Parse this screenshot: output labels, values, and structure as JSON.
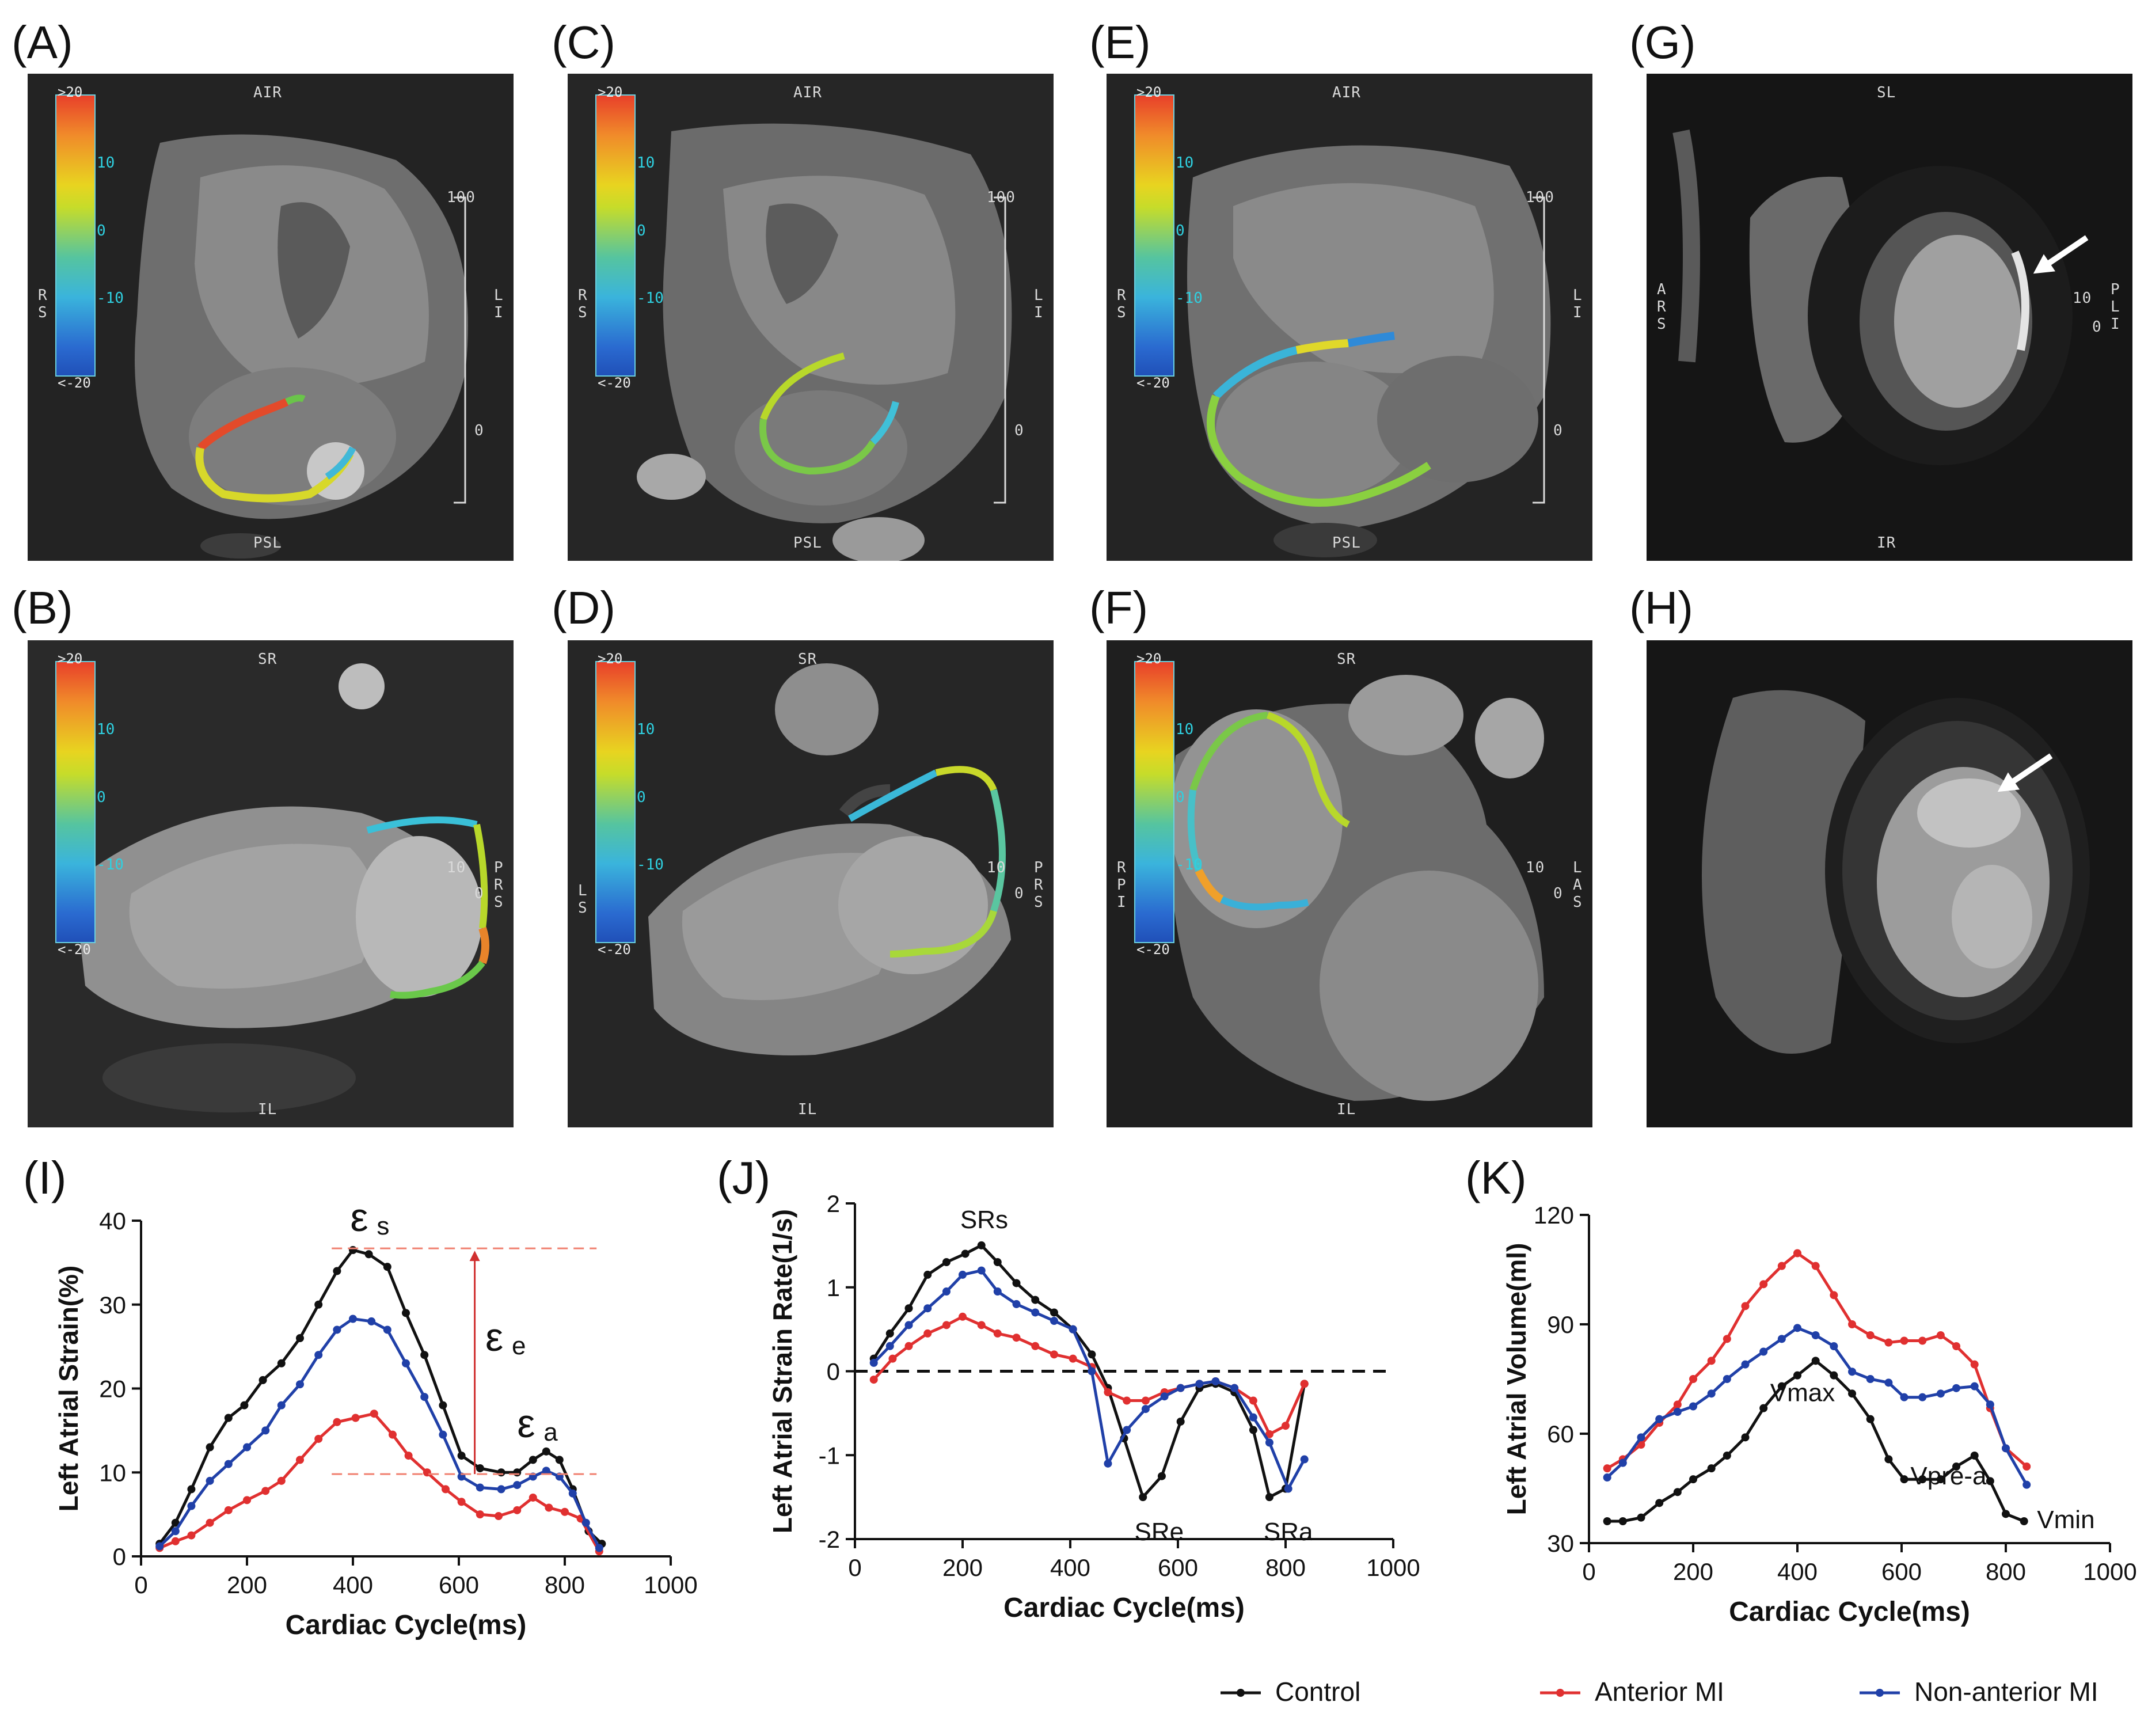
{
  "panel_labels": [
    "(A)",
    "(B)",
    "(C)",
    "(D)",
    "(E)",
    "(F)",
    "(G)",
    "(H)",
    "(I)",
    "(J)",
    "(K)"
  ],
  "mri": {
    "colorbar": {
      "top": ">20",
      "t10": "10",
      "t0": "0",
      "tm10": "-10",
      "bottom": "<-20"
    },
    "A": {
      "top": "AIR",
      "bottom": "PSL",
      "left": "R\nS",
      "right": "L\nI",
      "scale_100": "100",
      "scale_0": "0"
    },
    "C": {
      "top": "AIR",
      "bottom": "PSL",
      "left": "R\nS",
      "right": "L\nI",
      "scale_100": "100",
      "scale_0": "0"
    },
    "E": {
      "top": "AIR",
      "bottom": "PSL",
      "left": "R\nS",
      "right": "L\nI",
      "scale_100": "100",
      "scale_0": "0"
    },
    "G": {
      "top": "SL",
      "bottom": "IR",
      "left": "A\nR\nS",
      "right": "P\nL\nI",
      "scale_10": "10",
      "scale_0": "0"
    },
    "B": {
      "top": "SR",
      "bottom": "IL",
      "right": "P\nR\nS",
      "scale_10": "10",
      "scale_0": "0"
    },
    "D": {
      "top": "SR",
      "bottom": "IL",
      "left": "L\nS",
      "right": "P\nR\nS",
      "scale_10": "10",
      "scale_0": "0"
    },
    "F": {
      "top": "SR",
      "bottom": "IL",
      "left": "R\nP\nI",
      "right": "L\nA\nS",
      "scale_10": "10",
      "scale_0": "0"
    }
  },
  "chart_data": [
    {
      "type": "line",
      "id": "I",
      "xlabel": "Cardiac Cycle(ms)",
      "ylabel": "Left Atrial Strain(%)",
      "xlim": [
        0,
        1000
      ],
      "ylim": [
        0,
        40
      ],
      "xticks": [
        0,
        200,
        400,
        600,
        800,
        1000
      ],
      "yticks": [
        0,
        10,
        20,
        30,
        40
      ],
      "annotations": {
        "es": "ε",
        "es_sub": "s",
        "ee": "ε",
        "ee_sub": "e",
        "ea": "ε",
        "ea_sub": "a"
      },
      "series": [
        {
          "name": "Control",
          "color": "#111111",
          "points": [
            [
              35,
              1.5
            ],
            [
              65,
              4
            ],
            [
              95,
              8
            ],
            [
              130,
              13
            ],
            [
              165,
              16.5
            ],
            [
              195,
              18
            ],
            [
              230,
              21
            ],
            [
              265,
              23
            ],
            [
              300,
              26
            ],
            [
              335,
              30
            ],
            [
              370,
              34
            ],
            [
              400,
              36.5
            ],
            [
              430,
              36
            ],
            [
              465,
              34.5
            ],
            [
              500,
              29
            ],
            [
              535,
              24
            ],
            [
              570,
              18
            ],
            [
              605,
              12
            ],
            [
              640,
              10.5
            ],
            [
              680,
              10
            ],
            [
              710,
              10
            ],
            [
              740,
              11.5
            ],
            [
              765,
              12.5
            ],
            [
              790,
              11.5
            ],
            [
              815,
              8
            ],
            [
              845,
              3
            ],
            [
              870,
              1.5
            ]
          ]
        },
        {
          "name": "Anterior MI",
          "color": "#e03030",
          "points": [
            [
              35,
              1
            ],
            [
              65,
              1.8
            ],
            [
              95,
              2.5
            ],
            [
              130,
              4
            ],
            [
              165,
              5.5
            ],
            [
              200,
              6.7
            ],
            [
              235,
              7.8
            ],
            [
              265,
              9
            ],
            [
              300,
              11.5
            ],
            [
              335,
              14
            ],
            [
              370,
              16
            ],
            [
              405,
              16.5
            ],
            [
              440,
              17
            ],
            [
              475,
              14.5
            ],
            [
              505,
              12
            ],
            [
              540,
              10
            ],
            [
              575,
              8
            ],
            [
              605,
              6.5
            ],
            [
              640,
              5
            ],
            [
              675,
              4.8
            ],
            [
              710,
              5.5
            ],
            [
              740,
              7
            ],
            [
              770,
              5.8
            ],
            [
              800,
              5.3
            ],
            [
              830,
              4.5
            ],
            [
              865,
              0.6
            ]
          ]
        },
        {
          "name": "Non-anterior MI",
          "color": "#2040a8",
          "points": [
            [
              35,
              1.2
            ],
            [
              65,
              3
            ],
            [
              95,
              6
            ],
            [
              130,
              9
            ],
            [
              165,
              11
            ],
            [
              200,
              13
            ],
            [
              235,
              15
            ],
            [
              265,
              18
            ],
            [
              300,
              20.5
            ],
            [
              335,
              24
            ],
            [
              370,
              27
            ],
            [
              400,
              28.3
            ],
            [
              435,
              28
            ],
            [
              465,
              27
            ],
            [
              500,
              23
            ],
            [
              535,
              19
            ],
            [
              570,
              14.5
            ],
            [
              605,
              9.5
            ],
            [
              640,
              8.2
            ],
            [
              680,
              8
            ],
            [
              710,
              8.5
            ],
            [
              740,
              9.5
            ],
            [
              765,
              10.2
            ],
            [
              790,
              9.5
            ],
            [
              815,
              7.5
            ],
            [
              840,
              4
            ],
            [
              865,
              1
            ]
          ]
        }
      ]
    },
    {
      "type": "line",
      "id": "J",
      "xlabel": "Cardiac Cycle(ms)",
      "ylabel": "Left Atrial Strain Rate(1/s)",
      "xlim": [
        0,
        1000
      ],
      "ylim": [
        -2,
        2
      ],
      "xticks": [
        0,
        200,
        400,
        600,
        800,
        1000
      ],
      "yticks": [
        -2,
        -1,
        0,
        1,
        2
      ],
      "annotations": {
        "srs": "SRs",
        "sre": "SRe",
        "sra": "SRa"
      },
      "series": [
        {
          "name": "Control",
          "color": "#111111",
          "points": [
            [
              35,
              0.15
            ],
            [
              65,
              0.45
            ],
            [
              100,
              0.75
            ],
            [
              135,
              1.15
            ],
            [
              170,
              1.3
            ],
            [
              205,
              1.4
            ],
            [
              235,
              1.5
            ],
            [
              265,
              1.3
            ],
            [
              300,
              1.05
            ],
            [
              335,
              0.85
            ],
            [
              370,
              0.7
            ],
            [
              405,
              0.5
            ],
            [
              440,
              0.2
            ],
            [
              470,
              -0.2
            ],
            [
              500,
              -0.8
            ],
            [
              535,
              -1.5
            ],
            [
              570,
              -1.25
            ],
            [
              605,
              -0.6
            ],
            [
              640,
              -0.2
            ],
            [
              670,
              -0.15
            ],
            [
              705,
              -0.25
            ],
            [
              740,
              -0.7
            ],
            [
              770,
              -1.5
            ],
            [
              800,
              -1.4
            ],
            [
              835,
              -0.15
            ]
          ]
        },
        {
          "name": "Anterior MI",
          "color": "#e03030",
          "points": [
            [
              35,
              -0.1
            ],
            [
              70,
              0.15
            ],
            [
              100,
              0.3
            ],
            [
              135,
              0.45
            ],
            [
              170,
              0.55
            ],
            [
              200,
              0.65
            ],
            [
              235,
              0.55
            ],
            [
              265,
              0.45
            ],
            [
              300,
              0.4
            ],
            [
              335,
              0.3
            ],
            [
              370,
              0.2
            ],
            [
              405,
              0.15
            ],
            [
              440,
              0.05
            ],
            [
              470,
              -0.25
            ],
            [
              505,
              -0.35
            ],
            [
              540,
              -0.35
            ],
            [
              575,
              -0.25
            ],
            [
              605,
              -0.2
            ],
            [
              640,
              -0.15
            ],
            [
              670,
              -0.12
            ],
            [
              705,
              -0.2
            ],
            [
              740,
              -0.35
            ],
            [
              770,
              -0.75
            ],
            [
              800,
              -0.65
            ],
            [
              835,
              -0.15
            ]
          ]
        },
        {
          "name": "Non-anterior MI",
          "color": "#2040a8",
          "points": [
            [
              35,
              0.1
            ],
            [
              65,
              0.3
            ],
            [
              100,
              0.55
            ],
            [
              135,
              0.75
            ],
            [
              170,
              0.95
            ],
            [
              200,
              1.15
            ],
            [
              235,
              1.2
            ],
            [
              265,
              0.95
            ],
            [
              300,
              0.8
            ],
            [
              335,
              0.7
            ],
            [
              370,
              0.6
            ],
            [
              405,
              0.5
            ],
            [
              440,
              0
            ],
            [
              470,
              -1.1
            ],
            [
              505,
              -0.7
            ],
            [
              540,
              -0.45
            ],
            [
              575,
              -0.3
            ],
            [
              605,
              -0.2
            ],
            [
              640,
              -0.15
            ],
            [
              670,
              -0.12
            ],
            [
              705,
              -0.2
            ],
            [
              740,
              -0.55
            ],
            [
              770,
              -0.85
            ],
            [
              805,
              -1.4
            ],
            [
              835,
              -1.05
            ]
          ]
        }
      ]
    },
    {
      "type": "line",
      "id": "K",
      "xlabel": "Cardiac Cycle(ms)",
      "ylabel": "Left Atrial Volume(ml)",
      "xlim": [
        0,
        1000
      ],
      "ylim": [
        30,
        120
      ],
      "xticks": [
        0,
        200,
        400,
        600,
        800,
        1000
      ],
      "yticks": [
        30,
        60,
        90,
        120
      ],
      "annotations": {
        "vmax": "Vmax",
        "vprea": "Vpre-a",
        "vmin": "Vmin"
      },
      "series": [
        {
          "name": "Control",
          "color": "#111111",
          "points": [
            [
              35,
              36
            ],
            [
              65,
              36
            ],
            [
              100,
              37
            ],
            [
              135,
              41
            ],
            [
              170,
              44
            ],
            [
              200,
              47.5
            ],
            [
              235,
              50.5
            ],
            [
              265,
              54
            ],
            [
              300,
              59
            ],
            [
              335,
              67
            ],
            [
              370,
              73
            ],
            [
              400,
              76
            ],
            [
              435,
              80
            ],
            [
              470,
              76
            ],
            [
              505,
              71
            ],
            [
              540,
              64
            ],
            [
              575,
              53
            ],
            [
              605,
              47.5
            ],
            [
              640,
              47.5
            ],
            [
              675,
              47.5
            ],
            [
              705,
              51
            ],
            [
              740,
              54
            ],
            [
              770,
              47
            ],
            [
              800,
              38
            ],
            [
              835,
              36
            ]
          ]
        },
        {
          "name": "Anterior MI",
          "color": "#e03030",
          "points": [
            [
              35,
              50.5
            ],
            [
              65,
              53
            ],
            [
              100,
              57
            ],
            [
              135,
              63
            ],
            [
              170,
              68
            ],
            [
              200,
              75
            ],
            [
              235,
              80
            ],
            [
              265,
              86
            ],
            [
              300,
              95
            ],
            [
              335,
              101
            ],
            [
              370,
              106
            ],
            [
              400,
              109.5
            ],
            [
              435,
              106
            ],
            [
              470,
              98
            ],
            [
              505,
              90
            ],
            [
              540,
              87
            ],
            [
              575,
              85
            ],
            [
              605,
              85.5
            ],
            [
              640,
              85.5
            ],
            [
              675,
              87
            ],
            [
              705,
              84
            ],
            [
              740,
              79
            ],
            [
              770,
              67
            ],
            [
              800,
              56
            ],
            [
              840,
              51
            ]
          ]
        },
        {
          "name": "Non-anterior MI",
          "color": "#2040a8",
          "points": [
            [
              35,
              48
            ],
            [
              65,
              52
            ],
            [
              100,
              59
            ],
            [
              135,
              64
            ],
            [
              170,
              66
            ],
            [
              200,
              67.5
            ],
            [
              235,
              71
            ],
            [
              265,
              75
            ],
            [
              300,
              79
            ],
            [
              335,
              82.5
            ],
            [
              370,
              86
            ],
            [
              400,
              89
            ],
            [
              435,
              87
            ],
            [
              470,
              84
            ],
            [
              505,
              77
            ],
            [
              540,
              75
            ],
            [
              575,
              74
            ],
            [
              605,
              70
            ],
            [
              640,
              70
            ],
            [
              675,
              71
            ],
            [
              705,
              72.5
            ],
            [
              740,
              73
            ],
            [
              770,
              68
            ],
            [
              800,
              56
            ],
            [
              840,
              46
            ]
          ]
        }
      ]
    }
  ],
  "legend": {
    "control": "Control",
    "anterior": "Anterior MI",
    "nonanterior": "Non-anterior MI"
  }
}
